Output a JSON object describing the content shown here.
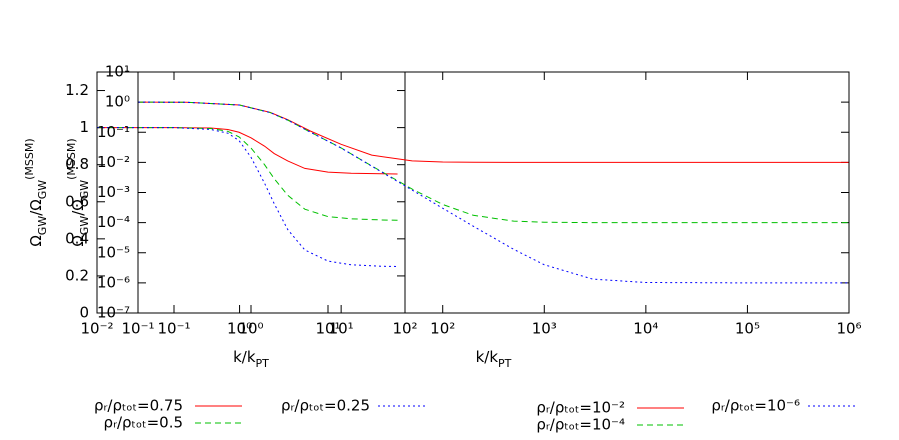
{
  "chart_data": [
    {
      "type": "line",
      "xscale": "log",
      "yscale": "linear",
      "xlabel": [
        {
          "text": "k/k"
        },
        {
          "text": "PT",
          "shift": "sub"
        }
      ],
      "ylabel": [
        {
          "text": "Ω"
        },
        {
          "text": "GW",
          "shift": "sub"
        },
        {
          "text": "/Ω"
        },
        {
          "text": "GW",
          "shift": "sub"
        },
        {
          "text": "(MSSM)",
          "shift": "super"
        }
      ],
      "xlim": [
        0.01,
        100
      ],
      "ylim": [
        0,
        1.3
      ],
      "xticks": [
        {
          "value": 0.01,
          "label": "10⁻²"
        },
        {
          "value": 0.1,
          "label": "10⁻¹"
        },
        {
          "value": 1,
          "label": "10⁰"
        },
        {
          "value": 10,
          "label": "10¹"
        },
        {
          "value": 100,
          "label": "10²"
        }
      ],
      "yticks": [
        0,
        0.2,
        0.4,
        0.6,
        0.8,
        1,
        1.2
      ],
      "x": [
        0.01,
        0.1,
        0.3,
        0.5,
        0.7,
        1,
        1.5,
        2,
        3,
        5,
        10,
        20,
        50,
        80
      ],
      "series": [
        {
          "name": "ρᵣ/ρₜₒₜ=0.75",
          "color": "#ff0000",
          "dash": "none",
          "values": [
            1,
            1,
            0.998,
            0.99,
            0.975,
            0.945,
            0.9,
            0.86,
            0.82,
            0.78,
            0.76,
            0.754,
            0.751,
            0.75
          ]
        },
        {
          "name": "ρᵣ/ρₜₒₜ=0.5",
          "color": "#00c000",
          "dash": "6,4",
          "values": [
            1,
            1,
            0.995,
            0.98,
            0.95,
            0.89,
            0.8,
            0.725,
            0.635,
            0.56,
            0.52,
            0.508,
            0.502,
            0.5
          ]
        },
        {
          "name": "ρᵣ/ρₜₒₜ=0.25",
          "color": "#0000ff",
          "dash": "2,3",
          "values": [
            1,
            1,
            0.99,
            0.97,
            0.93,
            0.84,
            0.7,
            0.59,
            0.45,
            0.34,
            0.28,
            0.26,
            0.252,
            0.251
          ]
        }
      ]
    },
    {
      "type": "line",
      "xscale": "log",
      "yscale": "log",
      "xlabel": [
        {
          "text": "k/k"
        },
        {
          "text": "PT",
          "shift": "sub"
        }
      ],
      "ylabel": [
        {
          "text": "Ω"
        },
        {
          "text": "GW",
          "shift": "sub"
        },
        {
          "text": "/Ω"
        },
        {
          "text": "GW",
          "shift": "sub"
        },
        {
          "text": "(MSSM)",
          "shift": "super"
        }
      ],
      "xlim": [
        0.1,
        1000000
      ],
      "ylim": [
        1e-07,
        10
      ],
      "xticks": [
        {
          "value": 0.1,
          "label": "10⁻¹"
        },
        {
          "value": 1,
          "label": "10⁰"
        },
        {
          "value": 10,
          "label": "10¹"
        },
        {
          "value": 100,
          "label": "10²"
        },
        {
          "value": 1000,
          "label": "10³"
        },
        {
          "value": 10000,
          "label": "10⁴"
        },
        {
          "value": 100000,
          "label": "10⁵"
        },
        {
          "value": 1000000,
          "label": "10⁶"
        }
      ],
      "yticks": [
        {
          "value": 1e-07,
          "label": "10⁻⁷"
        },
        {
          "value": 1e-06,
          "label": "10⁻⁶"
        },
        {
          "value": 1e-05,
          "label": "10⁻⁵"
        },
        {
          "value": 0.0001,
          "label": "10⁻⁴"
        },
        {
          "value": 0.001,
          "label": "10⁻³"
        },
        {
          "value": 0.01,
          "label": "10⁻²"
        },
        {
          "value": 0.1,
          "label": "10⁻¹"
        },
        {
          "value": 1,
          "label": "10⁰"
        },
        {
          "value": 10,
          "label": "10¹"
        }
      ],
      "x": [
        0.1,
        0.3,
        1,
        2,
        3,
        5,
        10,
        20,
        50,
        100,
        200,
        500,
        1000,
        3000,
        10000,
        100000,
        1000000
      ],
      "series": [
        {
          "name": "ρᵣ/ρₜₒₜ=10⁻²",
          "color": "#ff0000",
          "dash": "none",
          "values": [
            1,
            0.99,
            0.8,
            0.456,
            0.258,
            0.109,
            0.0397,
            0.0174,
            0.0112,
            0.0103,
            0.0101,
            0.01,
            0.01,
            0.01,
            0.01,
            0.01,
            0.01
          ]
        },
        {
          "name": "ρᵣ/ρₜₒₜ=10⁻⁴",
          "color": "#00c000",
          "dash": "6,4",
          "values": [
            1,
            0.99,
            0.8,
            0.45,
            0.25,
            0.1,
            0.0301,
            0.0076,
            0.0013,
            0.0004,
            0.000175,
            0.000112,
            0.000103,
            0.0001,
            0.0001,
            0.0001,
            0.0001
          ]
        },
        {
          "name": "ρᵣ/ρₜₒₜ=10⁻⁶",
          "color": "#0000ff",
          "dash": "2,3",
          "values": [
            1,
            0.99,
            0.8,
            0.45,
            0.25,
            0.1,
            0.03,
            0.0075,
            0.0012,
            0.0003,
            7.6e-05,
            1.3e-05,
            4e-06,
            1.33e-06,
            1.03e-06,
            1e-06,
            1e-06
          ]
        }
      ]
    }
  ]
}
